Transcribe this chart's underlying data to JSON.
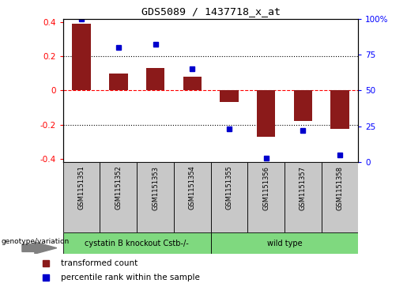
{
  "title": "GDS5089 / 1437718_x_at",
  "samples": [
    "GSM1151351",
    "GSM1151352",
    "GSM1151353",
    "GSM1151354",
    "GSM1151355",
    "GSM1151356",
    "GSM1151357",
    "GSM1151358"
  ],
  "red_bars": [
    0.39,
    0.1,
    0.13,
    0.08,
    -0.07,
    -0.27,
    -0.18,
    -0.225
  ],
  "blue_dots_pct": [
    100,
    80,
    82,
    65,
    23,
    3,
    22,
    5
  ],
  "ylim": [
    -0.42,
    0.42
  ],
  "right_ylim": [
    0,
    100
  ],
  "yticks_left": [
    -0.4,
    -0.2,
    0.0,
    0.2,
    0.4
  ],
  "yticks_right": [
    0,
    25,
    50,
    75,
    100
  ],
  "group1_label": "cystatin B knockout Cstb-/-",
  "group2_label": "wild type",
  "bar_color": "#8B1A1A",
  "dot_color": "#0000CD",
  "group_color": "#7FD97F",
  "bg_color": "#C8C8C8",
  "legend_red_label": "transformed count",
  "legend_blue_label": "percentile rank within the sample",
  "genotype_label": "genotype/variation"
}
